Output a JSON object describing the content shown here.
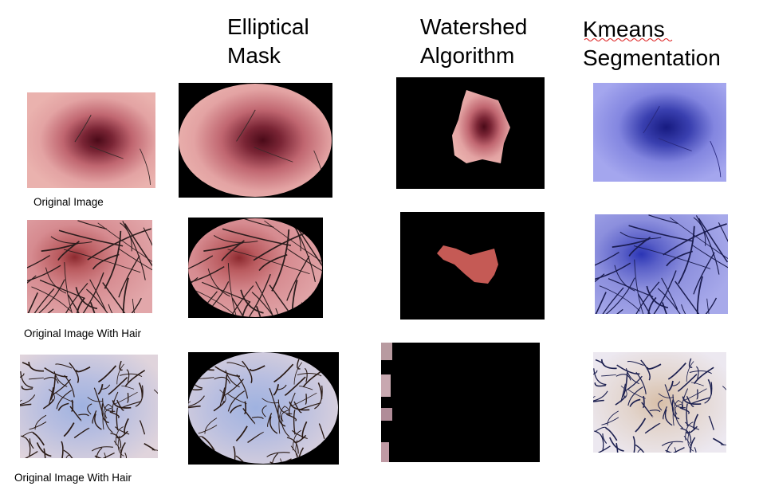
{
  "headers": [
    [
      "Elliptical",
      "Mask"
    ],
    [
      "Watershed",
      "Algorithm"
    ],
    [
      "Kmeans",
      "Segmentation"
    ]
  ],
  "labels": [
    "Original Image",
    "Original Image With Hair",
    "Original Image With Hair"
  ]
}
